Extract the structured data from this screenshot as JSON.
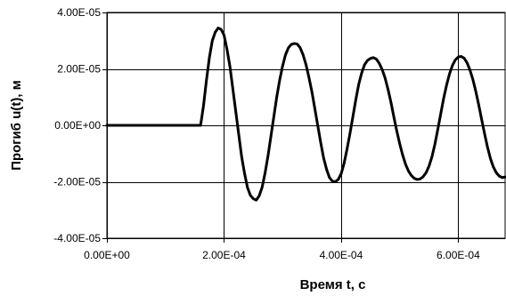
{
  "chart_data": {
    "type": "line",
    "title": "",
    "xlabel": "Время t, c",
    "ylabel": "Прогиб u(t), м",
    "xlim": [
      0,
      0.00068
    ],
    "ylim": [
      -4e-05,
      4e-05
    ],
    "x_ticks": [
      0,
      0.0002,
      0.0004,
      0.0006
    ],
    "x_tick_labels": [
      "0.00E+00",
      "2.00E-04",
      "4.00E-04",
      "6.00E-04"
    ],
    "y_ticks": [
      4e-05,
      2e-05,
      0,
      -2e-05,
      -4e-05
    ],
    "y_tick_labels": [
      "4.00E-05",
      "2.00E-05",
      "0.00E+00",
      "-2.00E-05",
      "-4.00E-05"
    ],
    "grid": true,
    "series": [
      {
        "color": "#000000",
        "x": [
          0,
          0.00016,
          0.000165,
          0.00017,
          0.000175,
          0.00018,
          0.000185,
          0.00019,
          0.000195,
          0.0002,
          0.000205,
          0.00021,
          0.000215,
          0.00022,
          0.000225,
          0.00023,
          0.000235,
          0.00024,
          0.000245,
          0.00025,
          0.000255,
          0.00026,
          0.000265,
          0.00027,
          0.000275,
          0.00028,
          0.000285,
          0.00029,
          0.000295,
          0.0003,
          0.000305,
          0.00031,
          0.000315,
          0.00032,
          0.000325,
          0.00033,
          0.000335,
          0.00034,
          0.000345,
          0.00035,
          0.000355,
          0.00036,
          0.000365,
          0.00037,
          0.000375,
          0.00038,
          0.000385,
          0.00039,
          0.000395,
          0.0004,
          0.000405,
          0.00041,
          0.000415,
          0.00042,
          0.000425,
          0.00043,
          0.000435,
          0.00044,
          0.000445,
          0.00045,
          0.000455,
          0.00046,
          0.000465,
          0.00047,
          0.000475,
          0.00048,
          0.000485,
          0.00049,
          0.000495,
          0.0005,
          0.000505,
          0.00051,
          0.000515,
          0.00052,
          0.000525,
          0.00053,
          0.000535,
          0.00054,
          0.000545,
          0.00055,
          0.000555,
          0.00056,
          0.000565,
          0.00057,
          0.000575,
          0.00058,
          0.000585,
          0.00059,
          0.000595,
          0.0006,
          0.000605,
          0.00061,
          0.000615,
          0.00062,
          0.000625,
          0.00063,
          0.000635,
          0.00064,
          0.000645,
          0.00065,
          0.000655,
          0.00066,
          0.000665,
          0.00067,
          0.000675,
          0.00068
        ],
        "y": [
          0,
          0,
          7e-06,
          1.6e-05,
          2.4e-05,
          3e-05,
          3.3e-05,
          3.45e-05,
          3.4e-05,
          3.2e-05,
          2.7e-05,
          2.1e-05,
          1.3e-05,
          5e-06,
          -3e-06,
          -1.1e-05,
          -1.7e-05,
          -2.2e-05,
          -2.48e-05,
          -2.6e-05,
          -2.65e-05,
          -2.5e-05,
          -2.2e-05,
          -1.7e-05,
          -1.1e-05,
          -4e-06,
          3e-06,
          1e-05,
          1.6e-05,
          2.1e-05,
          2.5e-05,
          2.75e-05,
          2.87e-05,
          2.9e-05,
          2.88e-05,
          2.75e-05,
          2.5e-05,
          2.15e-05,
          1.7e-05,
          1.2e-05,
          6e-06,
          0,
          -6e-06,
          -1.15e-05,
          -1.55e-05,
          -1.85e-05,
          -1.98e-05,
          -2e-05,
          -1.92e-05,
          -1.72e-05,
          -1.35e-05,
          -8.5e-06,
          -3e-06,
          3e-06,
          9e-06,
          1.45e-05,
          1.85e-05,
          2.15e-05,
          2.3e-05,
          2.37e-05,
          2.4e-05,
          2.35e-05,
          2.2e-05,
          1.98e-05,
          1.68e-05,
          1.28e-05,
          8.2e-06,
          3e-06,
          -2e-06,
          -6.5e-06,
          -1.05e-05,
          -1.38e-05,
          -1.62e-05,
          -1.78e-05,
          -1.88e-05,
          -1.92e-05,
          -1.9e-05,
          -1.82e-05,
          -1.68e-05,
          -1.45e-05,
          -1.12e-05,
          -6.8e-06,
          -1.5e-06,
          4e-06,
          9.5e-06,
          1.42e-05,
          1.82e-05,
          2.12e-05,
          2.32e-05,
          2.42e-05,
          2.44e-05,
          2.38e-05,
          2.22e-05,
          1.96e-05,
          1.62e-05,
          1.2e-05,
          7.2e-06,
          2e-06,
          -3e-06,
          -7.8e-06,
          -1.18e-05,
          -1.48e-05,
          -1.68e-05,
          -1.8e-05,
          -1.85e-05,
          -1.83e-05
        ]
      }
    ]
  }
}
